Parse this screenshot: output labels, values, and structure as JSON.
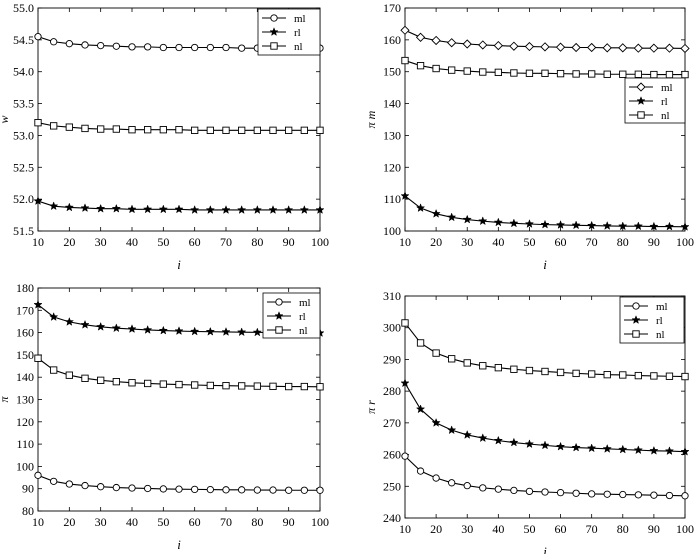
{
  "chart_data": [
    {
      "type": "line",
      "xlabel": "i",
      "ylabel": "w",
      "xlim": [
        10,
        100
      ],
      "ylim": [
        51.5,
        55.0
      ],
      "xticks": [
        10,
        20,
        30,
        40,
        50,
        60,
        70,
        80,
        90,
        100
      ],
      "yticks": [
        "51.5",
        "52.0",
        "52.5",
        "53.0",
        "53.5",
        "54.0",
        "54.5",
        "55.0"
      ],
      "legend_position": "top-right",
      "grid": false,
      "x": [
        10,
        15,
        20,
        25,
        30,
        35,
        40,
        45,
        50,
        55,
        60,
        65,
        70,
        75,
        80,
        85,
        90,
        95,
        100
      ],
      "series": [
        {
          "name": "ml",
          "marker": "circle",
          "values": [
            54.55,
            54.47,
            54.44,
            54.42,
            54.41,
            54.4,
            54.39,
            54.39,
            54.38,
            54.38,
            54.38,
            54.38,
            54.38,
            54.37,
            54.37,
            54.37,
            54.37,
            54.37,
            54.37
          ]
        },
        {
          "name": "rl",
          "marker": "star",
          "values": [
            51.97,
            51.89,
            51.87,
            51.86,
            51.85,
            51.85,
            51.84,
            51.84,
            51.84,
            51.84,
            51.83,
            51.83,
            51.83,
            51.83,
            51.83,
            51.83,
            51.83,
            51.83,
            51.83
          ]
        },
        {
          "name": "nl",
          "marker": "square",
          "values": [
            53.2,
            53.15,
            53.13,
            53.11,
            53.1,
            53.1,
            53.09,
            53.09,
            53.09,
            53.09,
            53.08,
            53.08,
            53.08,
            53.08,
            53.08,
            53.08,
            53.08,
            53.08,
            53.08
          ]
        }
      ]
    },
    {
      "type": "line",
      "xlabel": "i",
      "ylabel": "π m",
      "xlim": [
        10,
        100
      ],
      "ylim": [
        100,
        170
      ],
      "xticks": [
        10,
        20,
        30,
        40,
        50,
        60,
        70,
        80,
        90,
        100
      ],
      "yticks": [
        "100",
        "110",
        "120",
        "130",
        "140",
        "150",
        "160",
        "170"
      ],
      "legend_position": "center-right",
      "grid": false,
      "x": [
        10,
        15,
        20,
        25,
        30,
        35,
        40,
        45,
        50,
        55,
        60,
        65,
        70,
        75,
        80,
        85,
        90,
        95,
        100
      ],
      "series": [
        {
          "name": "ml",
          "marker": "diamond",
          "values": [
            163.0,
            160.8,
            159.8,
            159.1,
            158.7,
            158.4,
            158.2,
            158.0,
            157.9,
            157.8,
            157.7,
            157.6,
            157.6,
            157.5,
            157.5,
            157.4,
            157.4,
            157.4,
            157.3
          ]
        },
        {
          "name": "rl",
          "marker": "star",
          "values": [
            111.0,
            107.2,
            105.4,
            104.3,
            103.6,
            103.1,
            102.7,
            102.4,
            102.2,
            102.0,
            101.9,
            101.8,
            101.7,
            101.6,
            101.5,
            101.5,
            101.4,
            101.4,
            101.3
          ]
        },
        {
          "name": "nl",
          "marker": "square",
          "values": [
            153.5,
            151.9,
            151.0,
            150.5,
            150.2,
            149.9,
            149.8,
            149.6,
            149.5,
            149.5,
            149.4,
            149.3,
            149.3,
            149.2,
            149.2,
            149.2,
            149.1,
            149.1,
            149.1
          ]
        }
      ]
    },
    {
      "type": "line",
      "xlabel": "i",
      "ylabel": "π",
      "xlim": [
        10,
        100
      ],
      "ylim": [
        80,
        180
      ],
      "xticks": [
        10,
        20,
        30,
        40,
        50,
        60,
        70,
        80,
        90,
        100
      ],
      "yticks": [
        "80",
        "90",
        "100",
        "110",
        "120",
        "130",
        "140",
        "150",
        "160",
        "170",
        "180"
      ],
      "legend_position": "top-right",
      "grid": false,
      "x": [
        10,
        15,
        20,
        25,
        30,
        35,
        40,
        45,
        50,
        55,
        60,
        65,
        70,
        75,
        80,
        85,
        90,
        95,
        100
      ],
      "series": [
        {
          "name": "ml",
          "marker": "circle",
          "values": [
            96.0,
            93.3,
            92.1,
            91.4,
            90.9,
            90.5,
            90.3,
            90.1,
            89.9,
            89.8,
            89.7,
            89.6,
            89.5,
            89.5,
            89.4,
            89.4,
            89.3,
            89.3,
            89.3
          ]
        },
        {
          "name": "rl",
          "marker": "star",
          "values": [
            172.5,
            167.0,
            164.8,
            163.5,
            162.6,
            162.0,
            161.6,
            161.2,
            160.9,
            160.7,
            160.5,
            160.4,
            160.3,
            160.2,
            160.1,
            160.0,
            159.9,
            159.9,
            159.8
          ]
        },
        {
          "name": "nl",
          "marker": "square",
          "values": [
            148.5,
            143.2,
            140.9,
            139.5,
            138.6,
            138.0,
            137.5,
            137.2,
            136.9,
            136.7,
            136.5,
            136.3,
            136.2,
            136.1,
            136.0,
            135.9,
            135.8,
            135.8,
            135.7
          ]
        }
      ]
    },
    {
      "type": "line",
      "xlabel": "i",
      "ylabel": "π r",
      "xlim": [
        10,
        100
      ],
      "ylim": [
        240,
        310
      ],
      "xticks": [
        10,
        20,
        30,
        40,
        50,
        60,
        70,
        80,
        90,
        100
      ],
      "yticks": [
        "240",
        "250",
        "260",
        "270",
        "280",
        "290",
        "300",
        "310"
      ],
      "legend_position": "top-right",
      "grid": false,
      "x": [
        10,
        15,
        20,
        25,
        30,
        35,
        40,
        45,
        50,
        55,
        60,
        65,
        70,
        75,
        80,
        85,
        90,
        95,
        100
      ],
      "series": [
        {
          "name": "ml",
          "marker": "circle",
          "values": [
            259.5,
            254.8,
            252.6,
            251.1,
            250.2,
            249.5,
            249.1,
            248.7,
            248.4,
            248.2,
            248.0,
            247.8,
            247.6,
            247.5,
            247.4,
            247.3,
            247.2,
            247.1,
            247.0
          ]
        },
        {
          "name": "rl",
          "marker": "star",
          "values": [
            282.5,
            274.3,
            270.0,
            267.7,
            266.2,
            265.2,
            264.4,
            263.8,
            263.3,
            262.9,
            262.5,
            262.2,
            262.0,
            261.8,
            261.6,
            261.4,
            261.2,
            261.1,
            260.9
          ]
        },
        {
          "name": "nl",
          "marker": "square",
          "values": [
            301.5,
            295.2,
            292.0,
            290.2,
            288.9,
            288.0,
            287.4,
            286.9,
            286.5,
            286.2,
            285.9,
            285.6,
            285.4,
            285.2,
            285.1,
            284.9,
            284.8,
            284.7,
            284.6
          ]
        }
      ]
    }
  ]
}
